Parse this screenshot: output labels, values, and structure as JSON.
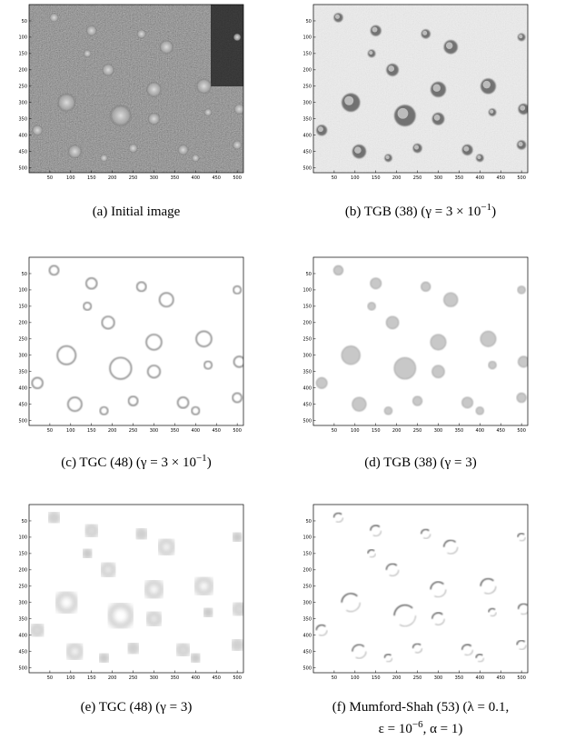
{
  "axes": {
    "xlim": [
      0,
      515
    ],
    "ylim": [
      0,
      515
    ],
    "xticks": [
      50,
      100,
      150,
      200,
      250,
      300,
      350,
      400,
      450,
      500
    ],
    "yticks": [
      50,
      100,
      150,
      200,
      250,
      300,
      350,
      400,
      450,
      500
    ]
  },
  "panels": [
    {
      "style": "dark",
      "caption": [
        [
          "(a) Initial image"
        ]
      ]
    },
    {
      "style": "relief",
      "caption": [
        [
          "(b) TGB (38) (γ = 3 × 10",
          {
            "sup": "−1"
          },
          ")"
        ]
      ]
    },
    {
      "style": "rings",
      "caption": [
        [
          "(c) TGC (48) (γ = 3 × 10",
          {
            "sup": "−1"
          },
          ")"
        ]
      ]
    },
    {
      "style": "filled",
      "caption": [
        [
          "(d) TGB (38) (γ = 3)"
        ]
      ]
    },
    {
      "style": "blurry",
      "caption": [
        [
          "(e) TGC (48) (γ = 3)"
        ]
      ]
    },
    {
      "style": "edges",
      "caption": [
        [
          "(f) Mumford-Shah (53) (λ = 0.1,"
        ],
        [
          "ε = 10",
          {
            "sup": "−6"
          },
          ", α = 1)"
        ]
      ]
    }
  ]
}
